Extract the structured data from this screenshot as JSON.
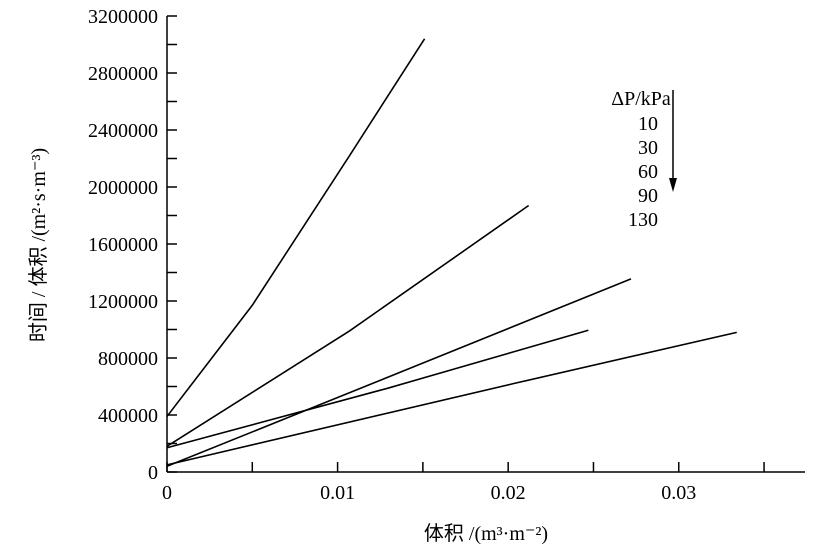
{
  "chart_data": {
    "type": "line",
    "title": "",
    "xlabel": "体积 /(m³·m⁻²)",
    "ylabel": "时间 / 体积 /(m²·s·m⁻³)",
    "xlim": [
      0,
      0.0374
    ],
    "ylim": [
      0,
      3200000
    ],
    "x_ticks": [
      0,
      0.01,
      0.02,
      0.03
    ],
    "x_tick_labels": [
      "0",
      "0.01",
      "0.02",
      "0.03"
    ],
    "y_ticks": [
      0,
      400000,
      800000,
      1200000,
      1600000,
      2000000,
      2400000,
      2800000,
      3200000
    ],
    "y_tick_labels": [
      "0",
      "400000",
      "800000",
      "1200000",
      "1600000",
      "2000000",
      "2400000",
      "2800000",
      "3200000"
    ],
    "grid": false,
    "legend": {
      "title": "ΔP/kPa",
      "entries": [
        "10",
        "30",
        "60",
        "90",
        "130"
      ],
      "placement": "top-right"
    },
    "series": [
      {
        "name": "10",
        "x": [
          0,
          0.005,
          0.0107,
          0.0151
        ],
        "y": [
          390000,
          1170000,
          2220000,
          3040000
        ]
      },
      {
        "name": "30",
        "x": [
          0,
          0.0107,
          0.0212
        ],
        "y": [
          180000,
          990000,
          1870000
        ]
      },
      {
        "name": "60",
        "x": [
          0,
          0.0145,
          0.0272
        ],
        "y": [
          40000,
          740000,
          1355000
        ]
      },
      {
        "name": "90",
        "x": [
          0,
          0.013,
          0.0247
        ],
        "y": [
          170000,
          590000,
          995000
        ]
      },
      {
        "name": "130",
        "x": [
          0,
          0.0203,
          0.0334
        ],
        "y": [
          50000,
          620000,
          980000
        ]
      }
    ]
  }
}
